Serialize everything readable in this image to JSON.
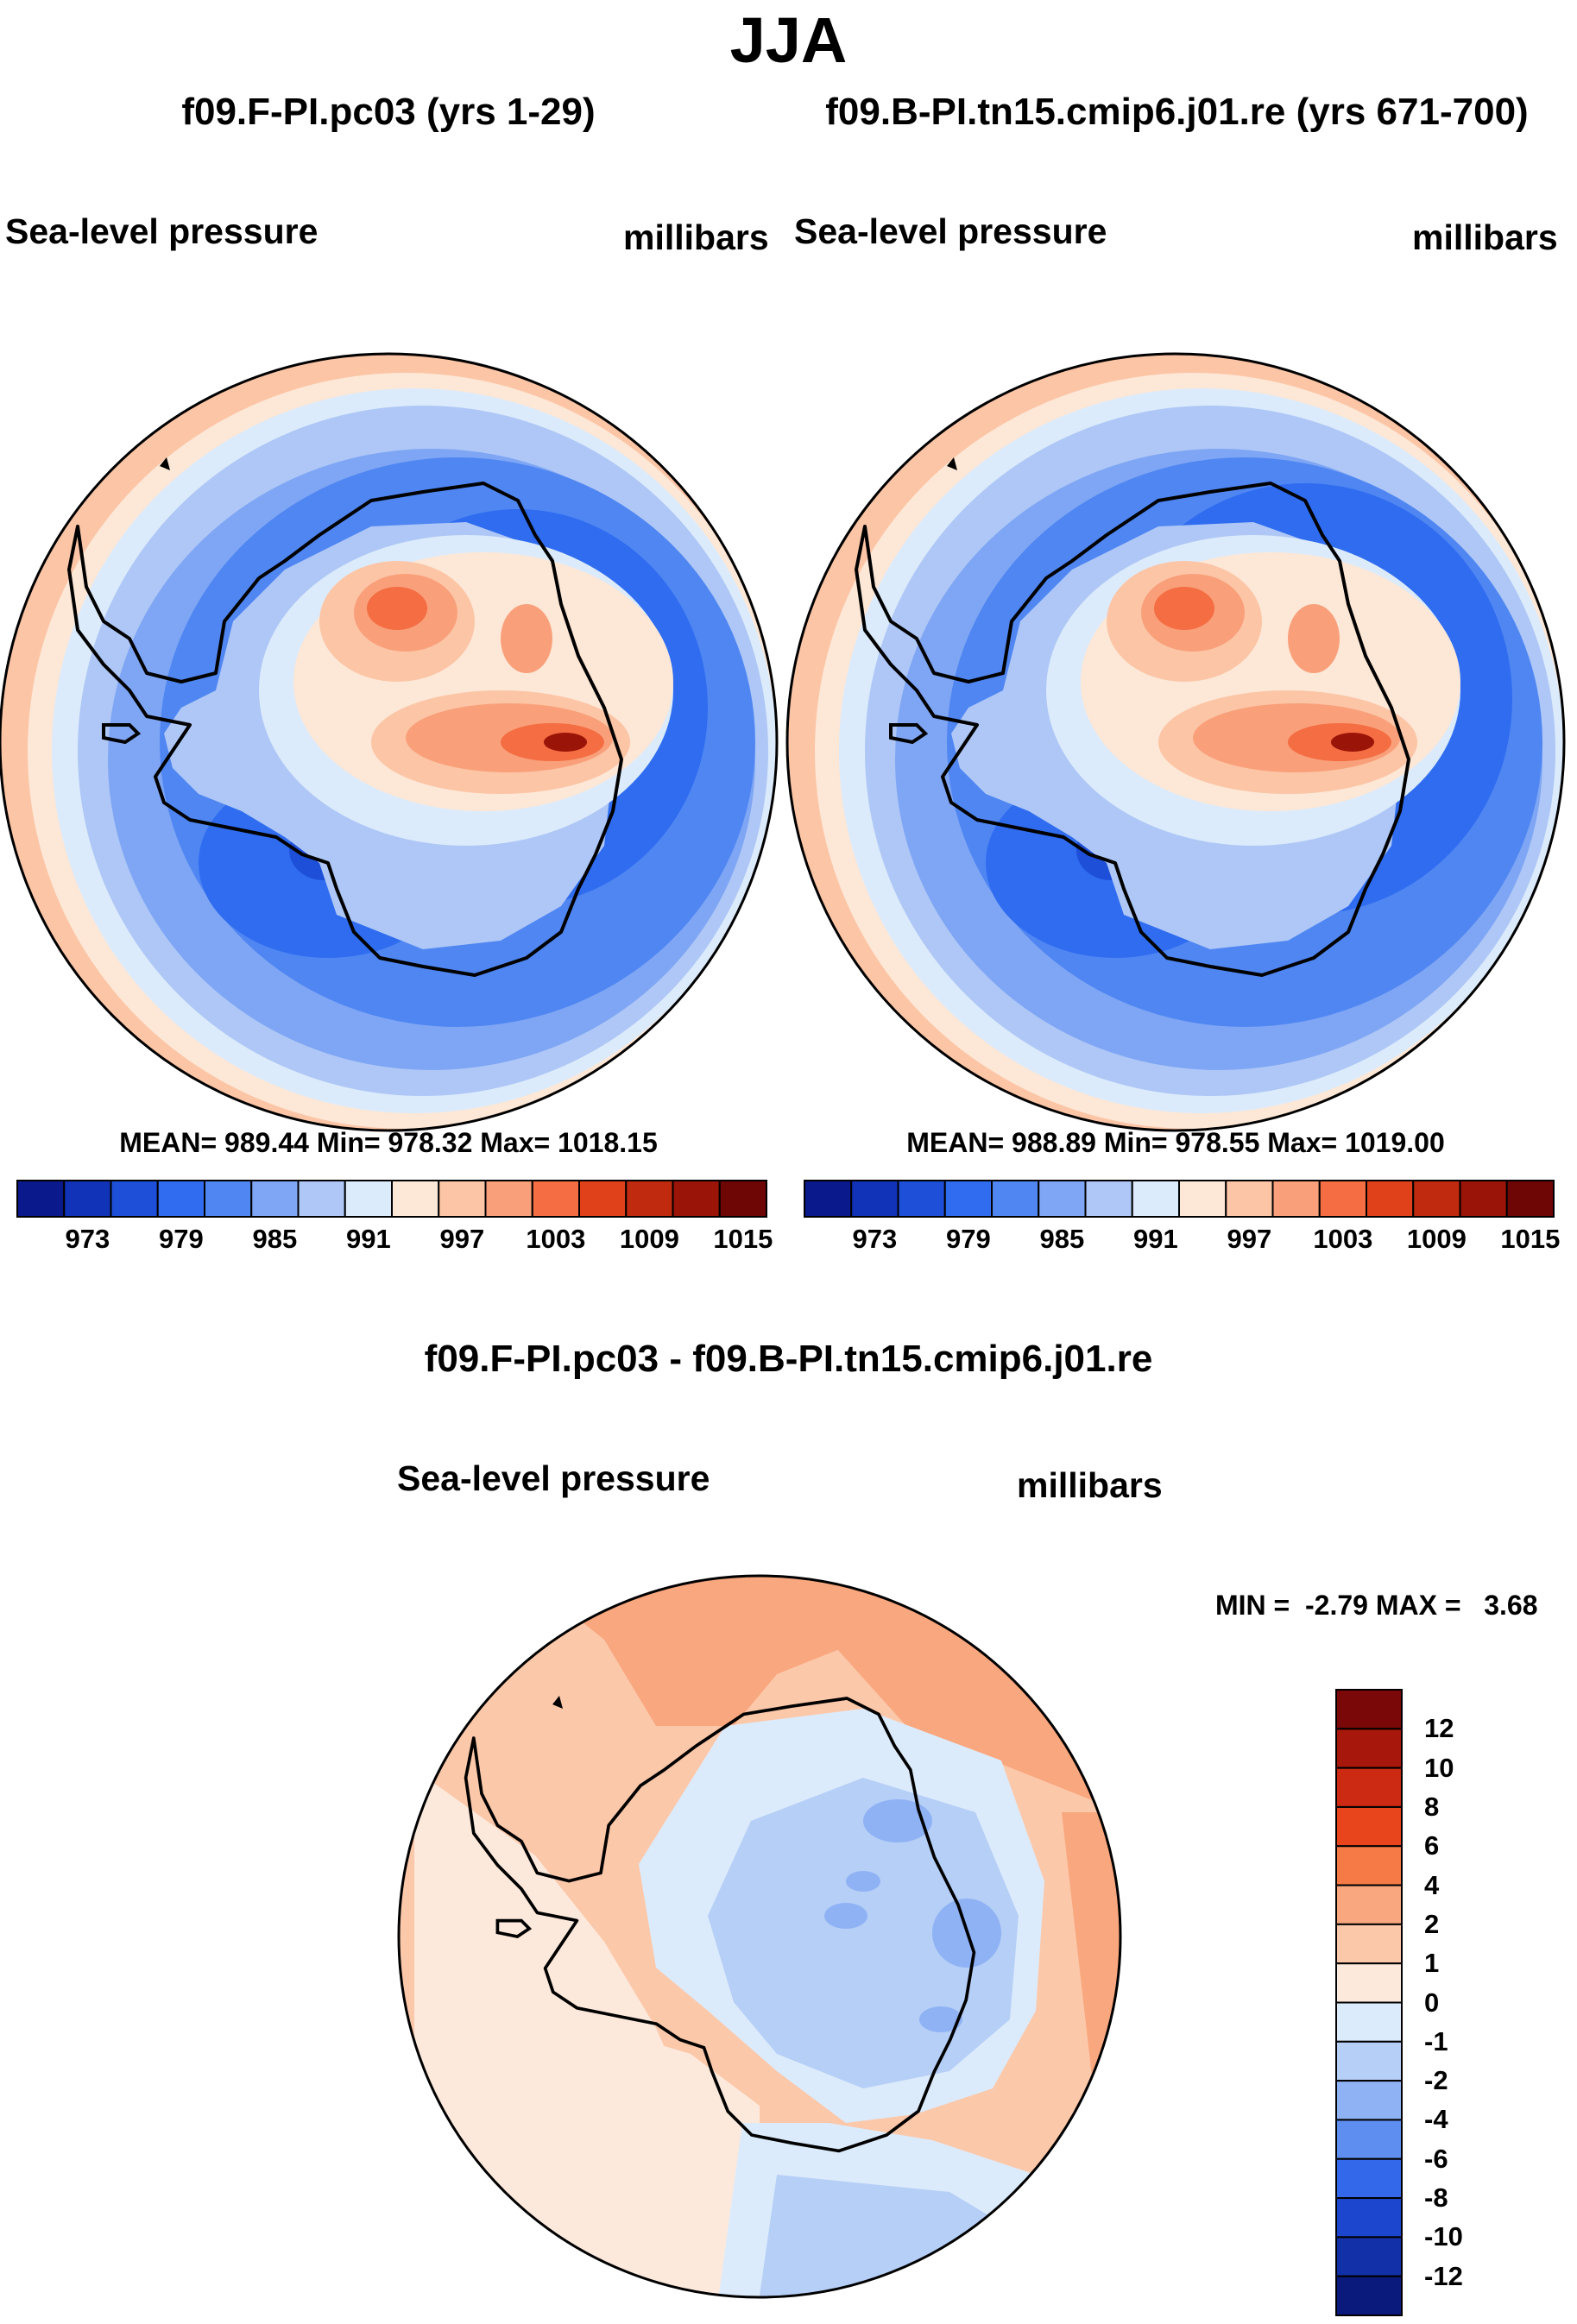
{
  "season_title": "JJA",
  "panels": [
    {
      "title": "f09.F-PI.pc03 (yrs 1-29)",
      "variable": "Sea-level pressure",
      "units": "millibars",
      "stats": "MEAN= 989.44  Min= 978.32  Max= 1018.15"
    },
    {
      "title": "f09.B-PI.tn15.cmip6.j01.re (yrs 671-700)",
      "variable": "Sea-level pressure",
      "units": "millibars",
      "stats": "MEAN= 988.89  Min= 978.55  Max= 1019.00"
    }
  ],
  "abs_colorbar": {
    "labels": [
      "973",
      "979",
      "985",
      "991",
      "997",
      "1003",
      "1009",
      "1015"
    ],
    "colors": [
      "#0a1a8c",
      "#1133b8",
      "#1d4fd9",
      "#2f6cf0",
      "#4f86f2",
      "#7fa6f4",
      "#aec7f6",
      "#dcebfb",
      "#fde7d6",
      "#fcc5a6",
      "#f9a07a",
      "#f46d43",
      "#e0401a",
      "#c02a0e",
      "#9a1408",
      "#6e0606"
    ]
  },
  "difference": {
    "title": "f09.F-PI.pc03 - f09.B-PI.tn15.cmip6.j01.re",
    "variable": "Sea-level pressure",
    "units": "millibars",
    "minmax": "MIN =  -2.79 MAX =   3.68",
    "colorbar": {
      "labels": [
        "12",
        "10",
        "8",
        "6",
        "4",
        "2",
        "1",
        "0",
        "-1",
        "-2",
        "-4",
        "-6",
        "-8",
        "-10",
        "-12"
      ],
      "colors": [
        "#7a0808",
        "#a8170c",
        "#cc2a12",
        "#e8451c",
        "#f67a45",
        "#f9a77e",
        "#fcc8aa",
        "#fde9dc",
        "#dcebfb",
        "#b6cff7",
        "#8fb2f4",
        "#5f8ef1",
        "#3468ea",
        "#1d46cf",
        "#1230a8",
        "#0a1a7c"
      ]
    }
  }
}
